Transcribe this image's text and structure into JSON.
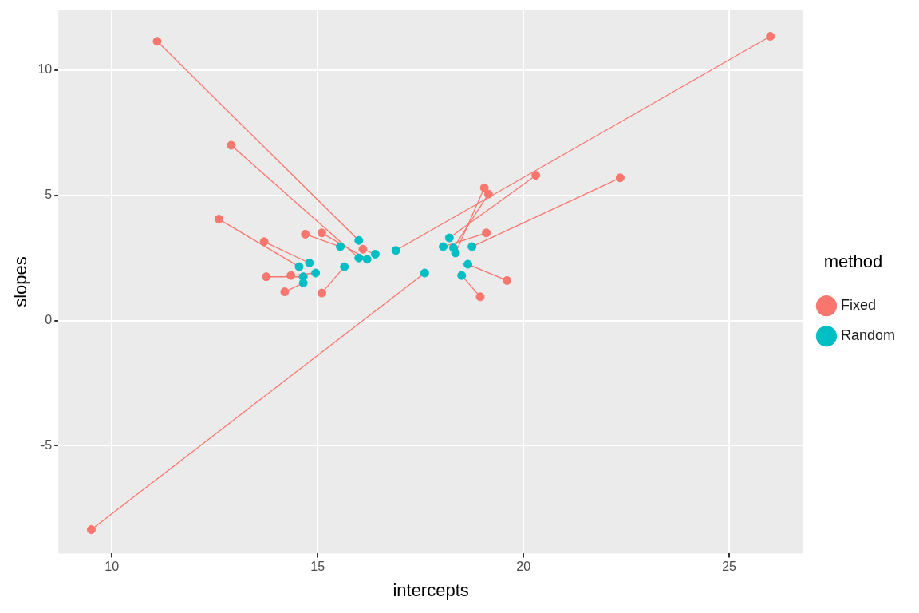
{
  "chart_data": {
    "type": "scatter",
    "x_label": "intercepts",
    "y_label": "slopes",
    "legend_title": "method",
    "legend": "right",
    "grid": true,
    "marker": "circle",
    "line_style": "solid",
    "xlim": [
      8.7,
      26.8
    ],
    "xticks": [
      10,
      15,
      20,
      25
    ],
    "ylim": [
      -9.3,
      12.4
    ],
    "yticks": [
      -5,
      0,
      5,
      10
    ],
    "series": [
      {
        "name": "Fixed",
        "color": "#F8766D",
        "x": [
          11.1,
          12.9,
          26.0,
          9.5,
          20.3,
          22.35,
          19.05,
          19.15,
          19.1,
          19.6,
          18.95,
          12.6,
          13.7,
          13.75,
          14.35,
          14.2,
          14.7,
          15.1,
          15.1,
          16.1
        ],
        "values": [
          11.15,
          7.0,
          11.35,
          -8.35,
          5.8,
          5.7,
          5.3,
          5.05,
          3.5,
          1.6,
          0.95,
          4.05,
          3.15,
          1.75,
          1.8,
          1.15,
          3.45,
          3.5,
          1.1,
          2.85
        ]
      },
      {
        "name": "Random",
        "color": "#00BFC4",
        "x": [
          16.0,
          16.0,
          16.9,
          17.6,
          18.2,
          18.75,
          18.35,
          18.3,
          18.05,
          18.65,
          18.5,
          14.55,
          14.8,
          14.65,
          14.95,
          14.65,
          15.55,
          16.2,
          15.65,
          16.4
        ],
        "values": [
          3.2,
          2.5,
          2.8,
          1.9,
          3.3,
          2.95,
          2.7,
          2.9,
          2.95,
          2.25,
          1.8,
          2.15,
          2.3,
          1.75,
          1.9,
          1.5,
          2.95,
          2.45,
          2.15,
          2.65
        ]
      }
    ]
  }
}
